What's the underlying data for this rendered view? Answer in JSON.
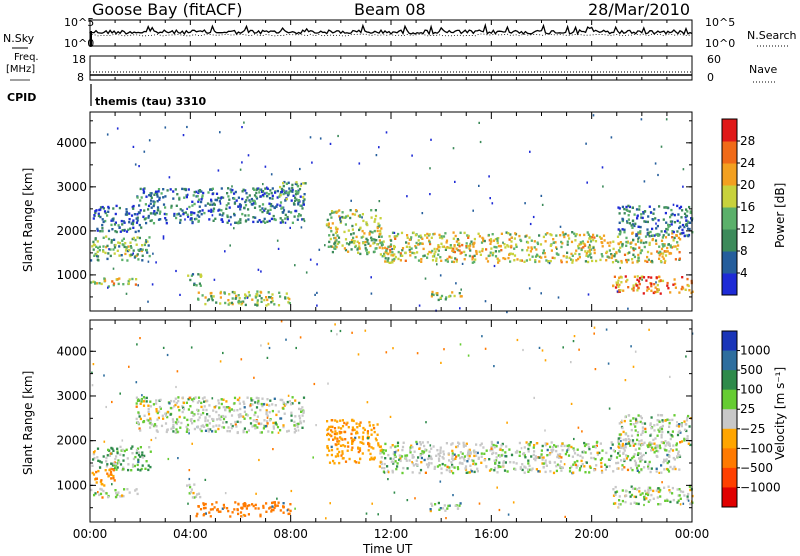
{
  "header": {
    "station": "Goose Bay (fitACF)",
    "beam": "Beam 08",
    "date": "28/Mar/2010"
  },
  "top_panels": {
    "nsky_label": "N.Sky",
    "nsearch_label": "N.Search",
    "noise_tick_high": "10^5",
    "noise_tick_low": "10^0",
    "freq_label": "Freq.",
    "freq_unit": "[MHz]",
    "freq_tick_high": "18",
    "freq_tick_low": "8",
    "nave_label": "Nave",
    "nave_tick_high": "60",
    "nave_tick_low": "0",
    "cpid_label": "CPID",
    "cpid_value": "themis (tau) 3310"
  },
  "colors": {
    "power": [
      "#1e2bd6",
      "#255e9c",
      "#3c8a5a",
      "#5bb06a",
      "#c8d23c",
      "#f3a020",
      "#f06a18",
      "#e01818"
    ],
    "velocity": [
      "#1a35b8",
      "#2e6e9e",
      "#2e8a4a",
      "#66cc33",
      "#c8c8c8",
      "#ffa500",
      "#ff7a00",
      "#ff4000",
      "#e00000"
    ],
    "velocity_gray": "#c8c8c8"
  },
  "chart_data": [
    {
      "type": "line",
      "title": "N.Sky / N.Search",
      "x": [
        "00:00",
        "04:00",
        "08:00",
        "12:00",
        "16:00",
        "20:00",
        "00:00"
      ],
      "yscale": "log",
      "ylim": [
        1,
        100000
      ],
      "yticks": [
        "10^0",
        "10^5"
      ],
      "description_values": "noise level approximately constant near 10^4 throughout the day"
    },
    {
      "type": "line",
      "title": "Freq. / Nave",
      "ylabel": "Freq. [MHz]",
      "ylim": [
        8,
        18
      ],
      "series": [
        {
          "name": "Freq.",
          "values": [
            10.5,
            10.5,
            10.5,
            10.5,
            10.5,
            10.5,
            10.5
          ]
        },
        {
          "name": "Nave",
          "values": [
            18,
            18,
            18,
            18,
            18,
            18,
            18
          ]
        }
      ]
    },
    {
      "type": "heatmap",
      "title": "Power",
      "xlabel": "",
      "ylabel": "Slant Range [km]",
      "x_ticks": [
        "00:00",
        "04:00",
        "08:00",
        "12:00",
        "16:00",
        "20:00",
        "00:00"
      ],
      "xlim_hours": [
        0,
        24
      ],
      "ylim": [
        180,
        4700
      ],
      "y_ticks": [
        1000,
        2000,
        3000,
        4000
      ],
      "colorbar_label": "Power [dB]",
      "colorbar_ticks": [
        4,
        8,
        12,
        16,
        20,
        24,
        28
      ],
      "colorbar_range": [
        0,
        32
      ],
      "bands": [
        {
          "t0": 0.0,
          "t1": 2.4,
          "r0": 1350,
          "r1": 1900,
          "level": 14
        },
        {
          "t0": 0.0,
          "t1": 1.9,
          "r0": 750,
          "r1": 950,
          "level": 18
        },
        {
          "t0": 0.1,
          "t1": 2.0,
          "r0": 2000,
          "r1": 2600,
          "level": 6
        },
        {
          "t0": 1.8,
          "t1": 8.5,
          "r0": 2200,
          "r1": 3000,
          "level": 8
        },
        {
          "t0": 7.5,
          "t1": 8.6,
          "r0": 2700,
          "r1": 3150,
          "level": 12
        },
        {
          "t0": 3.8,
          "t1": 4.4,
          "r0": 750,
          "r1": 1050,
          "level": 14
        },
        {
          "t0": 4.2,
          "t1": 8.0,
          "r0": 330,
          "r1": 650,
          "level": 16
        },
        {
          "t0": 9.4,
          "t1": 11.6,
          "r0": 1500,
          "r1": 2500,
          "level": 15
        },
        {
          "t0": 11.5,
          "t1": 23.5,
          "r0": 1300,
          "r1": 2000,
          "level": 18
        },
        {
          "t0": 13.5,
          "t1": 14.8,
          "r0": 450,
          "r1": 650,
          "level": 16
        },
        {
          "t0": 20.8,
          "t1": 24.0,
          "r0": 600,
          "r1": 1000,
          "level": 24
        },
        {
          "t0": 21.0,
          "t1": 24.0,
          "r0": 1900,
          "r1": 2600,
          "level": 8
        }
      ]
    },
    {
      "type": "heatmap",
      "title": "Velocity",
      "xlabel": "Time UT",
      "ylabel": "Slant Range [km]",
      "x_ticks": [
        "00:00",
        "04:00",
        "08:00",
        "12:00",
        "16:00",
        "20:00",
        "00:00"
      ],
      "xlim_hours": [
        0,
        24
      ],
      "ylim": [
        180,
        4700
      ],
      "y_ticks": [
        1000,
        2000,
        3000,
        4000
      ],
      "colorbar_label": "Velocity [m s⁻¹]",
      "colorbar_ticks": [
        "1000",
        "500",
        "100",
        "25",
        "−25",
        "−100",
        "−500",
        "−1000"
      ],
      "bands": [
        {
          "t0": 0.0,
          "t1": 2.4,
          "r0": 1350,
          "r1": 1900,
          "vel": 25
        },
        {
          "t0": 0.0,
          "t1": 1.9,
          "r0": 750,
          "r1": 950,
          "vel": 0
        },
        {
          "t0": 0.0,
          "t1": 1.0,
          "r0": 1000,
          "r1": 1400,
          "vel": -100
        },
        {
          "t0": 1.8,
          "t1": 8.5,
          "r0": 2200,
          "r1": 3000,
          "vel": 0
        },
        {
          "t0": 3.8,
          "t1": 4.4,
          "r0": 750,
          "r1": 1050,
          "vel": 0
        },
        {
          "t0": 4.2,
          "t1": 8.0,
          "r0": 330,
          "r1": 650,
          "vel": -150
        },
        {
          "t0": 9.4,
          "t1": 11.6,
          "r0": 1500,
          "r1": 2500,
          "vel": -80
        },
        {
          "t0": 11.5,
          "t1": 23.5,
          "r0": 1300,
          "r1": 2000,
          "vel": 0
        },
        {
          "t0": 13.5,
          "t1": 14.8,
          "r0": 450,
          "r1": 650,
          "vel": 0
        },
        {
          "t0": 20.8,
          "t1": 24.0,
          "r0": 600,
          "r1": 1000,
          "vel": 0
        },
        {
          "t0": 21.0,
          "t1": 24.0,
          "r0": 1900,
          "r1": 2600,
          "vel": 0
        }
      ]
    }
  ],
  "axes": {
    "slant_range_label": "Slant Range [km]",
    "time_label": "Time UT",
    "power_label": "Power [dB]",
    "velocity_label": "Velocity [m s⁻¹]"
  }
}
